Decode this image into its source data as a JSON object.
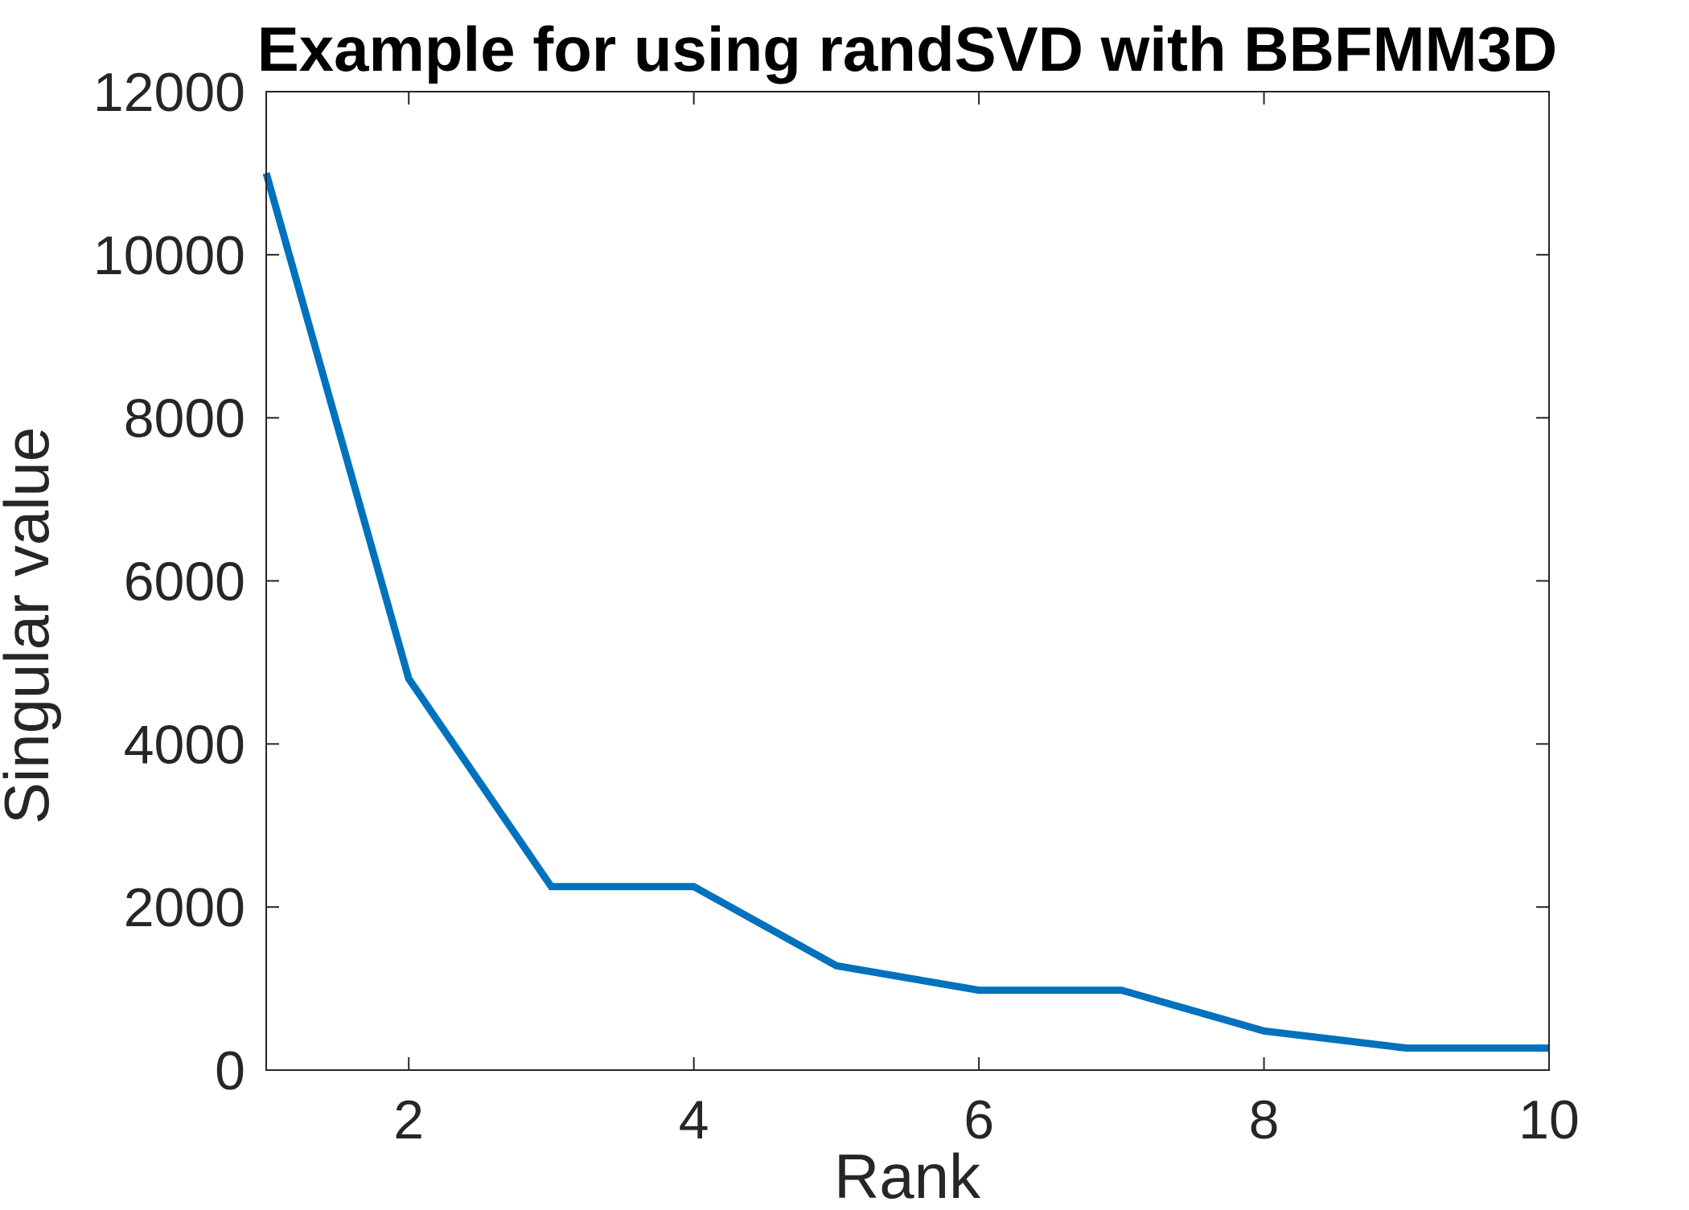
{
  "chart_data": {
    "type": "line",
    "title": "Example for using randSVD with BBFMM3D",
    "xlabel": "Rank",
    "ylabel": "Singular value",
    "xlim": [
      1,
      10
    ],
    "ylim": [
      0,
      12000
    ],
    "xticks": [
      2,
      4,
      6,
      8,
      10
    ],
    "yticks": [
      0,
      2000,
      4000,
      6000,
      8000,
      10000,
      12000
    ],
    "grid": false,
    "series": [
      {
        "x": [
          1,
          2,
          3,
          4,
          5,
          6,
          7,
          8,
          9,
          10
        ],
        "values": [
          11000,
          4800,
          2250,
          2250,
          1280,
          980,
          980,
          480,
          270,
          270
        ]
      }
    ],
    "colors": {
      "series": "#0072BD",
      "axis": "#262626",
      "title": "#000000"
    }
  }
}
